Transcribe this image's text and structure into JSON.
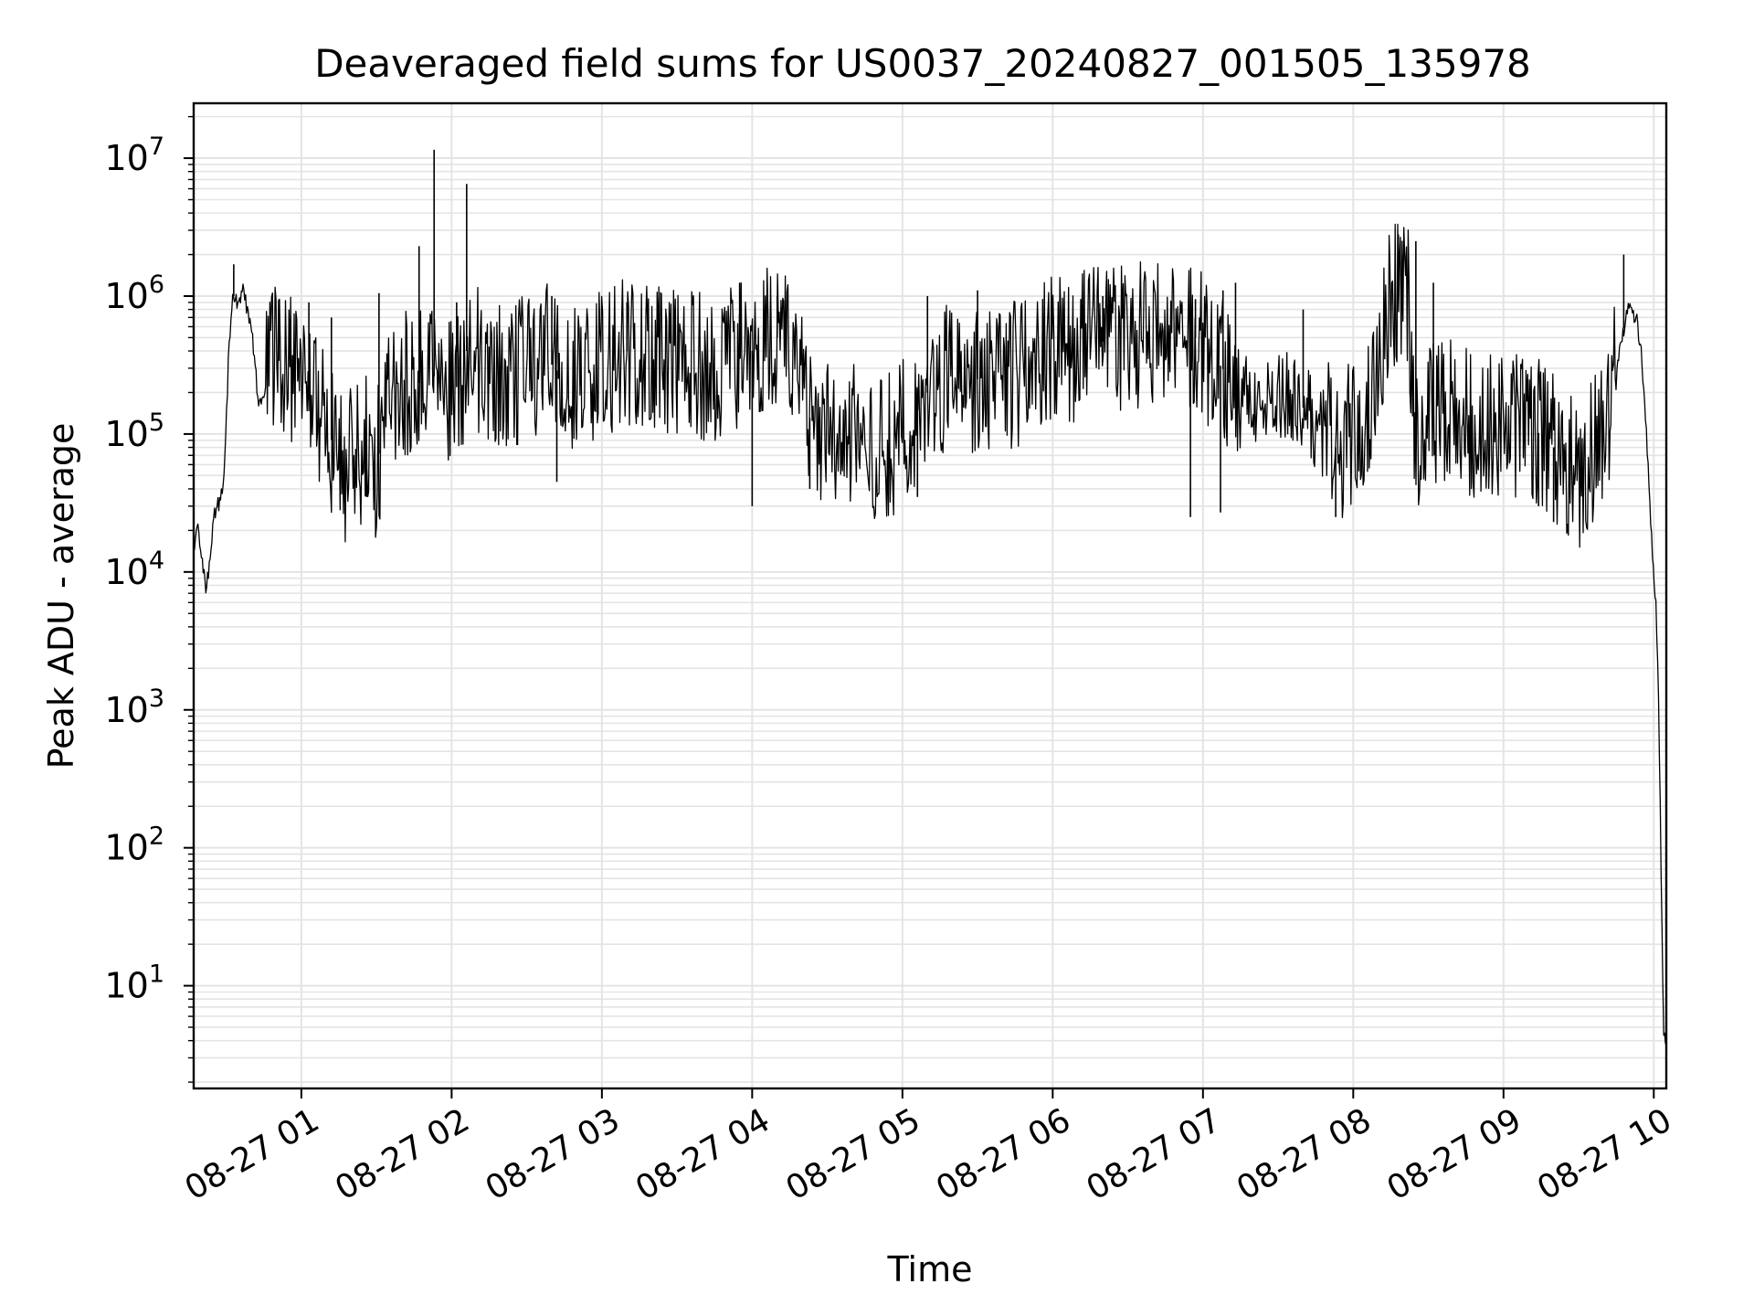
{
  "chart_data": {
    "type": "line",
    "title": "Deaveraged field sums for US0037_20240827_001505_135978",
    "xlabel": "Time",
    "ylabel": "Peak ADU - average",
    "x_scale": "time",
    "y_scale": "log",
    "xlim": [
      "2024-08-27 00:17",
      "2024-08-27 10:05"
    ],
    "ylim": [
      1.8,
      25000000
    ],
    "grid": true,
    "legend": "none",
    "x_ticks": [
      {
        "value": "2024-08-27 01:00",
        "label": "08-27 01"
      },
      {
        "value": "2024-08-27 02:00",
        "label": "08-27 02"
      },
      {
        "value": "2024-08-27 03:00",
        "label": "08-27 03"
      },
      {
        "value": "2024-08-27 04:00",
        "label": "08-27 04"
      },
      {
        "value": "2024-08-27 05:00",
        "label": "08-27 05"
      },
      {
        "value": "2024-08-27 06:00",
        "label": "08-27 06"
      },
      {
        "value": "2024-08-27 07:00",
        "label": "08-27 07"
      },
      {
        "value": "2024-08-27 08:00",
        "label": "08-27 08"
      },
      {
        "value": "2024-08-27 09:00",
        "label": "08-27 09"
      },
      {
        "value": "2024-08-27 10:00",
        "label": "08-27 10"
      }
    ],
    "y_ticks": [
      {
        "value": 10,
        "base": "10",
        "exp": "1"
      },
      {
        "value": 100,
        "base": "10",
        "exp": "2"
      },
      {
        "value": 1000,
        "base": "10",
        "exp": "3"
      },
      {
        "value": 10000,
        "base": "10",
        "exp": "4"
      },
      {
        "value": 100000,
        "base": "10",
        "exp": "5"
      },
      {
        "value": 1000000,
        "base": "10",
        "exp": "6"
      },
      {
        "value": 10000000,
        "base": "10",
        "exp": "7"
      }
    ],
    "series_color": "#000000",
    "series": [
      {
        "x": [
          "2024-08-27 00:17",
          "2024-08-27 00:19",
          "2024-08-27 00:20",
          "2024-08-27 00:21",
          "2024-08-27 00:22",
          "2024-08-27 00:25",
          "2024-08-27 00:28",
          "2024-08-27 00:29",
          "2024-08-27 00:30",
          "2024-08-27 00:31",
          "2024-08-27 00:32",
          "2024-08-27 00:33",
          "2024-08-27 00:35",
          "2024-08-27 00:37",
          "2024-08-27 00:38",
          "2024-08-27 00:40",
          "2024-08-27 00:41",
          "2024-08-27 00:43",
          "2024-08-27 00:45",
          "2024-08-27 00:47",
          "2024-08-27 00:50",
          "2024-08-27 00:55",
          "2024-08-27 01:00",
          "2024-08-27 01:05",
          "2024-08-27 01:10",
          "2024-08-27 01:15",
          "2024-08-27 01:18",
          "2024-08-27 01:20",
          "2024-08-27 01:25",
          "2024-08-27 01:28",
          "2024-08-27 01:30",
          "2024-08-27 01:35",
          "2024-08-27 01:40",
          "2024-08-27 01:45",
          "2024-08-27 01:50",
          "2024-08-27 01:54",
          "2024-08-27 01:56",
          "2024-08-27 02:00",
          "2024-08-27 02:05",
          "2024-08-27 02:06",
          "2024-08-27 02:10",
          "2024-08-27 02:20",
          "2024-08-27 02:30",
          "2024-08-27 02:38",
          "2024-08-27 02:45",
          "2024-08-27 02:55",
          "2024-08-27 03:10",
          "2024-08-27 03:25",
          "2024-08-27 03:40",
          "2024-08-27 03:55",
          "2024-08-27 04:00",
          "2024-08-27 04:10",
          "2024-08-27 04:20",
          "2024-08-27 04:24",
          "2024-08-27 04:30",
          "2024-08-27 04:40",
          "2024-08-27 04:50",
          "2024-08-27 05:00",
          "2024-08-27 05:10",
          "2024-08-27 05:20",
          "2024-08-27 05:30",
          "2024-08-27 05:40",
          "2024-08-27 05:50",
          "2024-08-27 06:00",
          "2024-08-27 06:15",
          "2024-08-27 06:30",
          "2024-08-27 06:45",
          "2024-08-27 06:55",
          "2024-08-27 07:05",
          "2024-08-27 07:15",
          "2024-08-27 07:25",
          "2024-08-27 07:35",
          "2024-08-27 07:45",
          "2024-08-27 07:53",
          "2024-08-27 08:00",
          "2024-08-27 08:05",
          "2024-08-27 08:10",
          "2024-08-27 08:13",
          "2024-08-27 08:16",
          "2024-08-27 08:18",
          "2024-08-27 08:22",
          "2024-08-27 08:25",
          "2024-08-27 08:35",
          "2024-08-27 08:45",
          "2024-08-27 08:55",
          "2024-08-27 09:05",
          "2024-08-27 09:15",
          "2024-08-27 09:20",
          "2024-08-27 09:25",
          "2024-08-27 09:30",
          "2024-08-27 09:35",
          "2024-08-27 09:40",
          "2024-08-27 09:45",
          "2024-08-27 09:47",
          "2024-08-27 09:50",
          "2024-08-27 09:53",
          "2024-08-27 09:55",
          "2024-08-27 09:57",
          "2024-08-27 09:59",
          "2024-08-27 10:00",
          "2024-08-27 10:01",
          "2024-08-27 10:02",
          "2024-08-27 10:03",
          "2024-08-27 10:04",
          "2024-08-27 10:05"
        ],
        "y": [
          16000,
          20000,
          15000,
          10000,
          7000,
          25000,
          35000,
          40000,
          120000,
          400000,
          800000,
          1000000,
          900000,
          1100000,
          850000,
          600000,
          400000,
          150000,
          200000,
          300000,
          350000,
          300000,
          250000,
          200000,
          120000,
          60000,
          50000,
          70000,
          80000,
          70000,
          60000,
          150000,
          250000,
          200000,
          300000,
          250000,
          300000,
          200000,
          250000,
          400000,
          350000,
          250000,
          300000,
          350000,
          250000,
          300000,
          400000,
          350000,
          300000,
          350000,
          400000,
          500000,
          300000,
          100000,
          100000,
          100000,
          70000,
          100000,
          200000,
          300000,
          250000,
          250000,
          300000,
          400000,
          450000,
          500000,
          600000,
          550000,
          350000,
          200000,
          150000,
          200000,
          120000,
          80000,
          100000,
          150000,
          250000,
          700000,
          1000000,
          1200000,
          1000000,
          100000,
          150000,
          120000,
          130000,
          120000,
          100000,
          80000,
          60000,
          50000,
          70000,
          100000,
          300000,
          500000,
          800000,
          700000,
          400000,
          100000,
          20000,
          10000,
          5000,
          1000,
          50,
          4,
          4
        ]
      }
    ],
    "spikes": [
      {
        "x": "2024-08-27 00:33",
        "y": 1700000
      },
      {
        "x": "2024-08-27 00:51",
        "y": 800000
      },
      {
        "x": "2024-08-27 01:03",
        "y": 900000
      },
      {
        "x": "2024-08-27 01:12",
        "y": 700000
      },
      {
        "x": "2024-08-27 01:31",
        "y": 1050000
      },
      {
        "x": "2024-08-27 01:47",
        "y": 2300000
      },
      {
        "x": "2024-08-27 01:53",
        "y": 11500000
      },
      {
        "x": "2024-08-27 02:02",
        "y": 900000
      },
      {
        "x": "2024-08-27 02:06",
        "y": 6500000
      },
      {
        "x": "2024-08-27 02:40",
        "y": 1000000
      },
      {
        "x": "2024-08-27 03:10",
        "y": 900000
      },
      {
        "x": "2024-08-27 03:55",
        "y": 1250000
      },
      {
        "x": "2024-08-27 04:10",
        "y": 1000000
      },
      {
        "x": "2024-08-27 05:10",
        "y": 1000000
      },
      {
        "x": "2024-08-27 05:30",
        "y": 1100000
      },
      {
        "x": "2024-08-27 06:20",
        "y": 1000000
      },
      {
        "x": "2024-08-27 06:57",
        "y": 950000
      },
      {
        "x": "2024-08-27 07:08",
        "y": 1100000
      },
      {
        "x": "2024-08-27 07:13",
        "y": 1250000
      },
      {
        "x": "2024-08-27 07:40",
        "y": 800000
      },
      {
        "x": "2024-08-27 08:18",
        "y": 2800000
      },
      {
        "x": "2024-08-27 08:25",
        "y": 2500000
      },
      {
        "x": "2024-08-27 08:32",
        "y": 1250000
      },
      {
        "x": "2024-08-27 09:48",
        "y": 2000000
      },
      {
        "x": "2024-08-27 01:26",
        "y": 35000
      },
      {
        "x": "2024-08-27 02:42",
        "y": 45000
      },
      {
        "x": "2024-08-27 04:00",
        "y": 30000
      },
      {
        "x": "2024-08-27 04:23",
        "y": 40000
      },
      {
        "x": "2024-08-27 05:06",
        "y": 35000
      },
      {
        "x": "2024-08-27 06:55",
        "y": 25000
      },
      {
        "x": "2024-08-27 07:07",
        "y": 27000
      },
      {
        "x": "2024-08-27 07:53",
        "y": 25000
      },
      {
        "x": "2024-08-27 09:14",
        "y": 30000
      },
      {
        "x": "2024-08-27 09:20",
        "y": 23000
      }
    ]
  }
}
